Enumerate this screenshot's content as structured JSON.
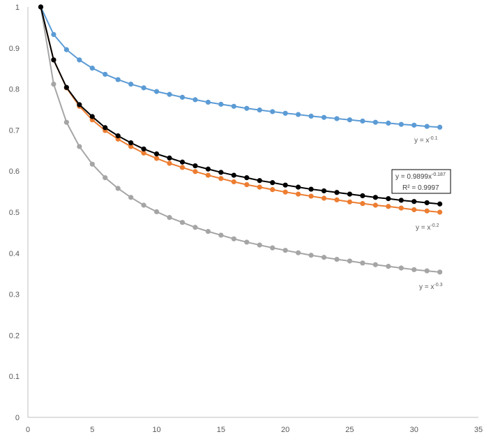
{
  "chart_data": {
    "type": "scatter",
    "title": "",
    "xlabel": "",
    "ylabel": "",
    "xlim": [
      0,
      35
    ],
    "ylim": [
      0,
      1
    ],
    "x_ticks": [
      "0",
      "5",
      "10",
      "15",
      "20",
      "25",
      "30",
      "35"
    ],
    "y_ticks": [
      "0",
      "0.1",
      "0.2",
      "0.3",
      "0.4",
      "0.5",
      "0.6",
      "0.7",
      "0.8",
      "0.9",
      "1"
    ],
    "grid": false,
    "legend": "none",
    "x": [
      1,
      2,
      3,
      4,
      5,
      6,
      7,
      8,
      9,
      10,
      11,
      12,
      13,
      14,
      15,
      16,
      17,
      18,
      19,
      20,
      21,
      22,
      23,
      24,
      25,
      26,
      27,
      28,
      29,
      30,
      31,
      32
    ],
    "series": [
      {
        "color": "#5b9bd5",
        "values": [
          1,
          0.933,
          0.896,
          0.871,
          0.851,
          0.836,
          0.823,
          0.812,
          0.803,
          0.794,
          0.787,
          0.78,
          0.774,
          0.768,
          0.763,
          0.758,
          0.753,
          0.749,
          0.745,
          0.741,
          0.738,
          0.734,
          0.731,
          0.728,
          0.725,
          0.722,
          0.719,
          0.717,
          0.714,
          0.712,
          0.709,
          0.707
        ]
      },
      {
        "color": "#ed7d31",
        "values": [
          1,
          0.871,
          0.803,
          0.758,
          0.725,
          0.699,
          0.678,
          0.66,
          0.644,
          0.631,
          0.619,
          0.609,
          0.599,
          0.59,
          0.582,
          0.574,
          0.567,
          0.561,
          0.555,
          0.549,
          0.544,
          0.539,
          0.534,
          0.53,
          0.525,
          0.521,
          0.517,
          0.514,
          0.51,
          0.506,
          0.503,
          0.5
        ]
      },
      {
        "color": "#a5a5a5",
        "values": [
          1,
          0.812,
          0.719,
          0.66,
          0.617,
          0.584,
          0.558,
          0.536,
          0.517,
          0.501,
          0.487,
          0.475,
          0.463,
          0.453,
          0.444,
          0.435,
          0.427,
          0.42,
          0.413,
          0.407,
          0.401,
          0.395,
          0.39,
          0.385,
          0.381,
          0.376,
          0.372,
          0.368,
          0.364,
          0.36,
          0.357,
          0.354
        ]
      },
      {
        "color": "#000000",
        "values": [
          1,
          0.871,
          0.804,
          0.762,
          0.733,
          0.706,
          0.686,
          0.669,
          0.654,
          0.642,
          0.632,
          0.622,
          0.613,
          0.605,
          0.597,
          0.59,
          0.584,
          0.577,
          0.572,
          0.566,
          0.561,
          0.556,
          0.552,
          0.548,
          0.544,
          0.54,
          0.536,
          0.533,
          0.529,
          0.526,
          0.523,
          0.52
        ]
      }
    ],
    "annotations": {
      "blue_base": "y = x",
      "blue_exp": "-0.1",
      "orange_base": "y = x",
      "orange_exp": "-0.2",
      "gray_base": "y = x",
      "gray_exp": "-0.3",
      "fit_eq_base": "y = 0.9899x",
      "fit_eq_exp": "-0.187",
      "fit_r2": "R² = 0.9997"
    }
  }
}
